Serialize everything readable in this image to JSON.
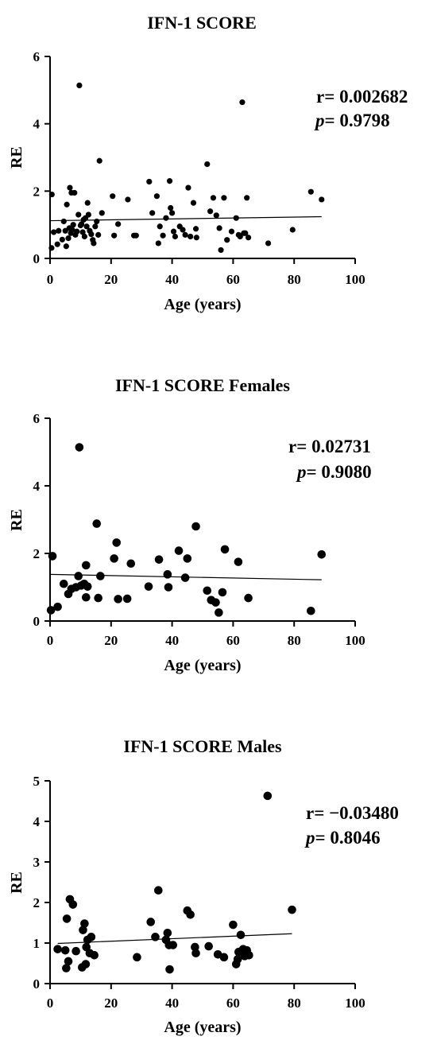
{
  "chart_data": [
    {
      "type": "scatter",
      "title": "IFN-1 SCORE",
      "xlabel": "Age (years)",
      "ylabel": "RE",
      "xlim": [
        0,
        100
      ],
      "ylim": [
        0,
        6
      ],
      "xticks": [
        0,
        20,
        40,
        60,
        80,
        100
      ],
      "yticks": [
        0,
        2,
        4,
        6
      ],
      "stats": {
        "r_label": "r= ",
        "r_value": "0.002682",
        "p_label": "p",
        "p_value": "= 0.9798"
      },
      "fit": {
        "x": [
          0,
          89
        ],
        "y": [
          1.12,
          1.24
        ]
      },
      "grid": false,
      "points": [
        [
          0.5,
          0.31
        ],
        [
          0.6,
          1.9
        ],
        [
          1.2,
          0.78
        ],
        [
          2.4,
          0.42
        ],
        [
          2.8,
          0.82
        ],
        [
          4,
          0.56
        ],
        [
          4.5,
          1.1
        ],
        [
          5,
          0.82
        ],
        [
          5.3,
          0.36
        ],
        [
          5.5,
          1.6
        ],
        [
          6,
          0.6
        ],
        [
          6.3,
          0.9
        ],
        [
          6.5,
          2.1
        ],
        [
          6.8,
          0.75
        ],
        [
          7,
          1.95
        ],
        [
          7.3,
          0.85
        ],
        [
          7.6,
          1.0
        ],
        [
          8,
          1.95
        ],
        [
          8.3,
          0.7
        ],
        [
          8.8,
          0.8
        ],
        [
          9.3,
          1.3
        ],
        [
          9.6,
          5.14
        ],
        [
          10,
          0.98
        ],
        [
          10.3,
          1.02
        ],
        [
          10.7,
          0.78
        ],
        [
          11,
          1.15
        ],
        [
          11.3,
          0.65
        ],
        [
          11.6,
          1.2
        ],
        [
          12,
          0.95
        ],
        [
          12.3,
          1.65
        ],
        [
          12.6,
          1.3
        ],
        [
          13,
          0.82
        ],
        [
          13.5,
          0.72
        ],
        [
          14,
          0.55
        ],
        [
          14.3,
          0.45
        ],
        [
          14.8,
          0.95
        ],
        [
          15.3,
          1.1
        ],
        [
          15.8,
          0.7
        ],
        [
          16.2,
          2.9
        ],
        [
          17,
          1.35
        ],
        [
          20.5,
          1.85
        ],
        [
          21,
          0.68
        ],
        [
          22.3,
          1.02
        ],
        [
          25.5,
          1.75
        ],
        [
          27.5,
          0.68
        ],
        [
          28.2,
          0.68
        ],
        [
          32.5,
          2.28
        ],
        [
          33.5,
          1.35
        ],
        [
          35,
          1.85
        ],
        [
          35.5,
          0.45
        ],
        [
          36,
          0.95
        ],
        [
          37,
          0.68
        ],
        [
          38,
          1.2
        ],
        [
          39.2,
          2.3
        ],
        [
          39.5,
          1.5
        ],
        [
          40,
          1.35
        ],
        [
          40.5,
          0.8
        ],
        [
          41,
          0.65
        ],
        [
          42.5,
          0.95
        ],
        [
          43.5,
          0.85
        ],
        [
          44.3,
          0.7
        ],
        [
          45.3,
          2.1
        ],
        [
          46,
          0.65
        ],
        [
          47,
          1.65
        ],
        [
          47.8,
          0.88
        ],
        [
          48,
          0.62
        ],
        [
          51.5,
          2.8
        ],
        [
          52.5,
          1.4
        ],
        [
          53.5,
          1.8
        ],
        [
          54.5,
          1.28
        ],
        [
          55.5,
          0.9
        ],
        [
          56,
          0.25
        ],
        [
          57,
          1.8
        ],
        [
          58,
          0.55
        ],
        [
          59.5,
          0.8
        ],
        [
          61,
          1.2
        ],
        [
          61.8,
          0.7
        ],
        [
          62.3,
          0.65
        ],
        [
          63,
          4.64
        ],
        [
          63.5,
          0.75
        ],
        [
          64,
          0.75
        ],
        [
          64.5,
          1.8
        ],
        [
          65,
          0.62
        ],
        [
          71.5,
          0.45
        ],
        [
          79.5,
          0.85
        ],
        [
          85.5,
          1.98
        ],
        [
          89,
          1.75
        ]
      ]
    },
    {
      "type": "scatter",
      "title": "IFN-1 SCORE Females",
      "xlabel": "Age (years)",
      "ylabel": "RE",
      "xlim": [
        0,
        100
      ],
      "ylim": [
        0,
        6
      ],
      "xticks": [
        0,
        20,
        40,
        60,
        80,
        100
      ],
      "yticks": [
        0,
        2,
        4,
        6
      ],
      "stats": {
        "r_label": "r= ",
        "r_value": "0.02731",
        "p_label": "p",
        "p_value": "= 0.9080"
      },
      "fit": {
        "x": [
          0,
          89
        ],
        "y": [
          1.38,
          1.22
        ]
      },
      "grid": false,
      "points": [
        [
          0.3,
          0.32
        ],
        [
          0.8,
          1.92
        ],
        [
          2.5,
          0.42
        ],
        [
          4.5,
          1.1
        ],
        [
          6,
          0.8
        ],
        [
          7,
          0.95
        ],
        [
          8.5,
          1.0
        ],
        [
          9.3,
          1.33
        ],
        [
          9.6,
          5.14
        ],
        [
          10.2,
          1.05
        ],
        [
          11.2,
          1.1
        ],
        [
          11.8,
          0.7
        ],
        [
          11.8,
          1.65
        ],
        [
          12.3,
          1.02
        ],
        [
          15.3,
          2.88
        ],
        [
          15.8,
          0.68
        ],
        [
          16.5,
          1.33
        ],
        [
          21,
          1.85
        ],
        [
          21.8,
          2.32
        ],
        [
          22.3,
          0.65
        ],
        [
          25.3,
          0.66
        ],
        [
          26.5,
          1.7
        ],
        [
          32.3,
          1.02
        ],
        [
          35.7,
          1.82
        ],
        [
          38.5,
          1.38
        ],
        [
          38.8,
          1.0
        ],
        [
          42.2,
          2.08
        ],
        [
          44.3,
          1.28
        ],
        [
          45,
          1.85
        ],
        [
          47.8,
          2.8
        ],
        [
          51.5,
          0.9
        ],
        [
          52.8,
          0.62
        ],
        [
          54.3,
          0.55
        ],
        [
          55.3,
          0.25
        ],
        [
          56.5,
          0.85
        ],
        [
          57.3,
          2.12
        ],
        [
          61.7,
          1.75
        ],
        [
          65,
          0.68
        ],
        [
          85.5,
          0.3
        ],
        [
          89,
          1.97
        ]
      ]
    },
    {
      "type": "scatter",
      "title": "IFN-1 SCORE Males",
      "xlabel": "Age (years)",
      "ylabel": "RE",
      "xlim": [
        0,
        100
      ],
      "ylim": [
        0,
        5
      ],
      "xticks": [
        0,
        20,
        40,
        60,
        80,
        100
      ],
      "yticks": [
        0,
        1,
        2,
        3,
        4,
        5
      ],
      "stats": {
        "r_label": "r= ",
        "r_value": "−0.03480",
        "p_label": "p",
        "p_value": "= 0.8046"
      },
      "fit": {
        "x": [
          2.5,
          79.3
        ],
        "y": [
          0.99,
          1.23
        ]
      },
      "grid": false,
      "points": [
        [
          2.5,
          0.85
        ],
        [
          5,
          0.82
        ],
        [
          5.3,
          0.38
        ],
        [
          5.5,
          1.6
        ],
        [
          6,
          0.55
        ],
        [
          6.5,
          2.08
        ],
        [
          7.5,
          1.95
        ],
        [
          8.5,
          0.8
        ],
        [
          10.5,
          0.4
        ],
        [
          10.8,
          1.32
        ],
        [
          11.3,
          1.48
        ],
        [
          11.7,
          0.48
        ],
        [
          11.9,
          0.9
        ],
        [
          12.3,
          1.08
        ],
        [
          13,
          0.75
        ],
        [
          13.5,
          1.15
        ],
        [
          14.5,
          0.7
        ],
        [
          28.5,
          0.65
        ],
        [
          33,
          1.52
        ],
        [
          34.5,
          1.15
        ],
        [
          35.5,
          2.3
        ],
        [
          38,
          1.08
        ],
        [
          38.5,
          1.25
        ],
        [
          39,
          0.95
        ],
        [
          39.2,
          0.35
        ],
        [
          40.3,
          0.95
        ],
        [
          45,
          1.8
        ],
        [
          46,
          1.7
        ],
        [
          47.5,
          0.9
        ],
        [
          47.8,
          0.75
        ],
        [
          52,
          0.92
        ],
        [
          55,
          0.72
        ],
        [
          57,
          0.65
        ],
        [
          60,
          1.45
        ],
        [
          61,
          0.48
        ],
        [
          61.5,
          0.6
        ],
        [
          61.8,
          0.78
        ],
        [
          62.5,
          1.2
        ],
        [
          63.3,
          0.85
        ],
        [
          63.8,
          0.68
        ],
        [
          64.5,
          0.82
        ],
        [
          65.2,
          0.7
        ],
        [
          71.3,
          4.63
        ],
        [
          79.3,
          1.82
        ]
      ]
    }
  ]
}
